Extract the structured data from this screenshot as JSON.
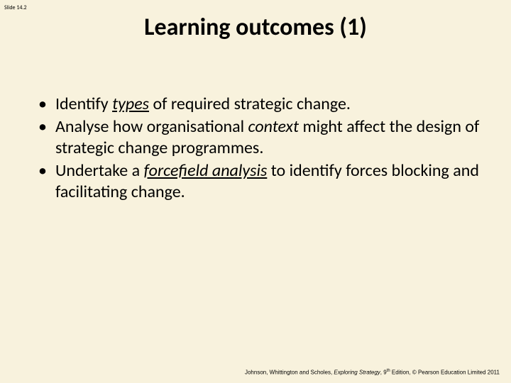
{
  "slide": {
    "background_color": "#f8f2dd",
    "slide_number_label": "Slide 14.2",
    "title": "Learning outcomes (1)",
    "title_fontsize": 34,
    "body_fontsize": 24,
    "text_color": "#000000",
    "bullets": [
      {
        "pre": "Identify ",
        "em": "types",
        "em_style": "italic-underline",
        "post": " of required strategic change."
      },
      {
        "pre": "Analyse how organisational ",
        "em": "context",
        "em_style": "italic",
        "post": " might affect the design of strategic change programmes."
      },
      {
        "pre": "Undertake a ",
        "em": "forcefield analysis",
        "em_style": "italic-underline",
        "post": " to identify forces blocking and facilitating change."
      }
    ],
    "footer": {
      "authors": "Johnson, Whittington and Scholes, ",
      "book_title": "Exploring Strategy",
      "edition_pre": ", 9",
      "edition_sup": "th",
      "tail": " Edition, © Pearson Education Limited 2011"
    }
  }
}
